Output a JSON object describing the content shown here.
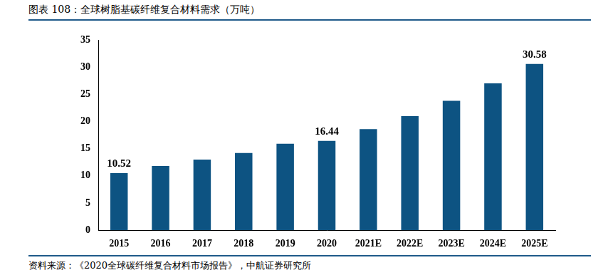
{
  "chart_data": {
    "type": "bar",
    "title": "图表 108：全球树脂基碳纤维复合材料需求（万吨）",
    "source": "资料来源：《2020全球碳纤维复合材料市场报告》，中航证券研究所",
    "categories": [
      "2015",
      "2016",
      "2017",
      "2018",
      "2019",
      "2020",
      "2021E",
      "2022E",
      "2023E",
      "2024E",
      "2025E"
    ],
    "values": [
      10.52,
      11.8,
      13.0,
      14.2,
      15.9,
      16.44,
      18.6,
      21.0,
      23.8,
      27.0,
      30.58
    ],
    "value_labels": [
      "10.52",
      null,
      null,
      null,
      null,
      "16.44",
      null,
      null,
      null,
      null,
      "30.58"
    ],
    "data_labels": true,
    "color": "#0d5382",
    "ylim": [
      0,
      35
    ],
    "yticks": [
      0,
      5,
      10,
      15,
      20,
      25,
      30,
      35
    ],
    "grid": false
  }
}
